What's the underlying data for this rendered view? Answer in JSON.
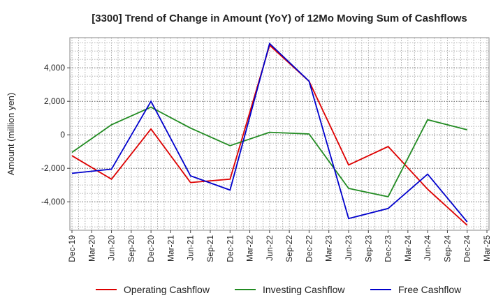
{
  "chart_data": {
    "type": "line",
    "title": "[3300]  Trend of Change in Amount (YoY) of 12Mo Moving Sum of Cashflows",
    "xlabel": "",
    "ylabel": "Amount (million yen)",
    "ylim": [
      -5700,
      5800
    ],
    "yticks": [
      -4000,
      -2000,
      0,
      2000,
      4000
    ],
    "ytick_labels": [
      "-4,000",
      "-2,000",
      "0",
      "2,000",
      "4,000"
    ],
    "categories": [
      "Dec-19",
      "Mar-20",
      "Jun-20",
      "Sep-20",
      "Dec-20",
      "Mar-21",
      "Jun-21",
      "Sep-21",
      "Dec-21",
      "Mar-22",
      "Jun-22",
      "Sep-22",
      "Dec-22",
      "Mar-23",
      "Jun-23",
      "Sep-23",
      "Dec-23",
      "Mar-24",
      "Jun-24",
      "Sep-24",
      "Dec-24",
      "Mar-25"
    ],
    "grid": true,
    "legend_position": "bottom",
    "series": [
      {
        "name": "Operating Cashflow",
        "color": "#dd0000",
        "points": [
          [
            0,
            -1250
          ],
          [
            2,
            -2650
          ],
          [
            4,
            350
          ],
          [
            6,
            -2850
          ],
          [
            8,
            -2650
          ],
          [
            10,
            5350
          ],
          [
            12,
            3200
          ],
          [
            14,
            -1800
          ],
          [
            16,
            -700
          ],
          [
            18,
            -3250
          ],
          [
            20,
            -5400
          ]
        ]
      },
      {
        "name": "Investing Cashflow",
        "color": "#228b22",
        "points": [
          [
            0,
            -1050
          ],
          [
            2,
            600
          ],
          [
            4,
            1650
          ],
          [
            6,
            400
          ],
          [
            8,
            -650
          ],
          [
            10,
            150
          ],
          [
            12,
            50
          ],
          [
            14,
            -3200
          ],
          [
            16,
            -3700
          ],
          [
            18,
            900
          ],
          [
            20,
            300
          ]
        ]
      },
      {
        "name": "Free Cashflow",
        "color": "#0000cc",
        "points": [
          [
            0,
            -2300
          ],
          [
            2,
            -2050
          ],
          [
            4,
            2000
          ],
          [
            6,
            -2450
          ],
          [
            8,
            -3300
          ],
          [
            10,
            5450
          ],
          [
            12,
            3200
          ],
          [
            14,
            -5000
          ],
          [
            16,
            -4400
          ],
          [
            18,
            -2350
          ],
          [
            20,
            -5200
          ]
        ]
      }
    ]
  }
}
